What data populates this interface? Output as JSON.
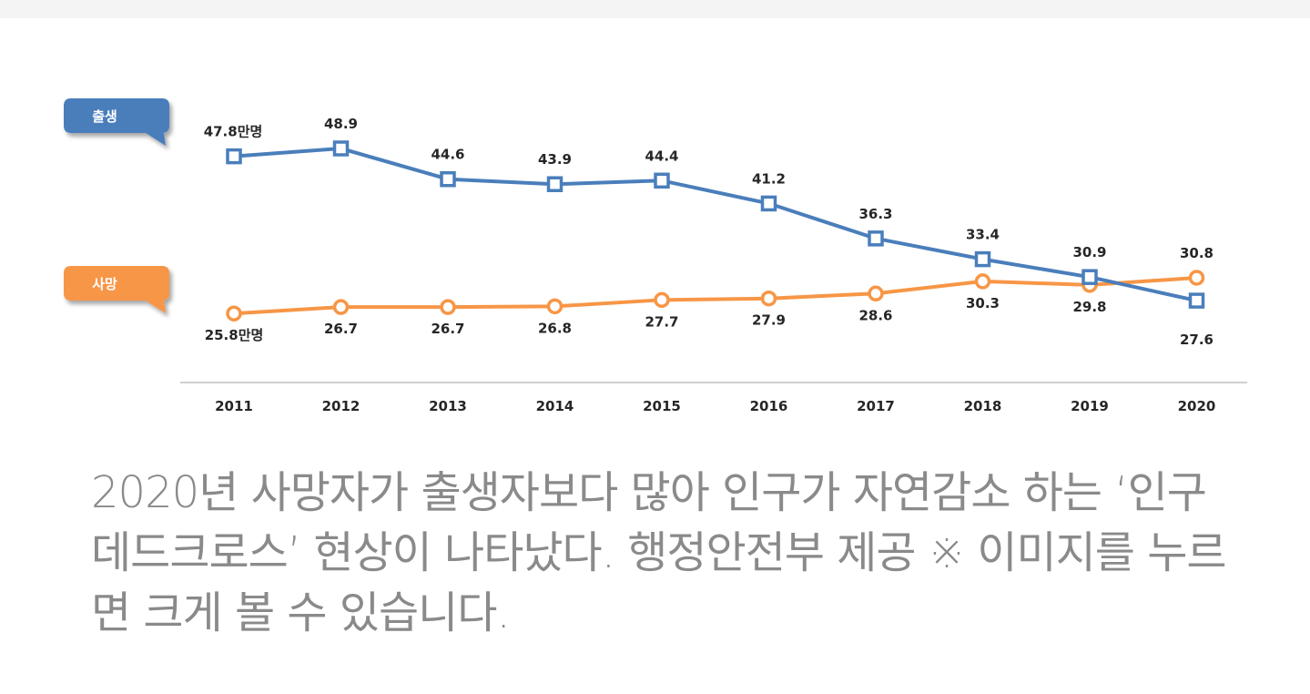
{
  "caption": "2020년 사망자가 출생자보다 많아 인구가 자연감소 하는 ‘인구 데드크로스’ 현상이 나타났다. 행정안전부 제공 ※ 이미지를 누르면 크게 볼 수 있습니다.",
  "colors": {
    "birth": "#4a7ebb",
    "death": "#f79646",
    "axis": "#bfbfbf",
    "caption": "#8a8a8a"
  },
  "chart_data": {
    "type": "line",
    "x": [
      "2011",
      "2012",
      "2013",
      "2014",
      "2015",
      "2016",
      "2017",
      "2018",
      "2019",
      "2020"
    ],
    "series": [
      {
        "name": "출생",
        "marker": "square",
        "values": [
          47.8,
          48.9,
          44.6,
          43.9,
          44.4,
          41.2,
          36.3,
          33.4,
          30.9,
          27.6
        ],
        "labels": [
          "47.8만명",
          "48.9",
          "44.6",
          "43.9",
          "44.4",
          "41.2",
          "36.3",
          "33.4",
          "30.9",
          "27.6"
        ]
      },
      {
        "name": "사망",
        "marker": "circle",
        "values": [
          25.8,
          26.7,
          26.7,
          26.8,
          27.7,
          27.9,
          28.6,
          30.3,
          29.8,
          30.8
        ],
        "labels": [
          "25.8만명",
          "26.7",
          "26.7",
          "26.8",
          "27.7",
          "27.9",
          "28.6",
          "30.3",
          "29.8",
          "30.8"
        ]
      }
    ],
    "ylim": [
      20,
      52
    ],
    "grid": false,
    "legend": "left callouts"
  }
}
